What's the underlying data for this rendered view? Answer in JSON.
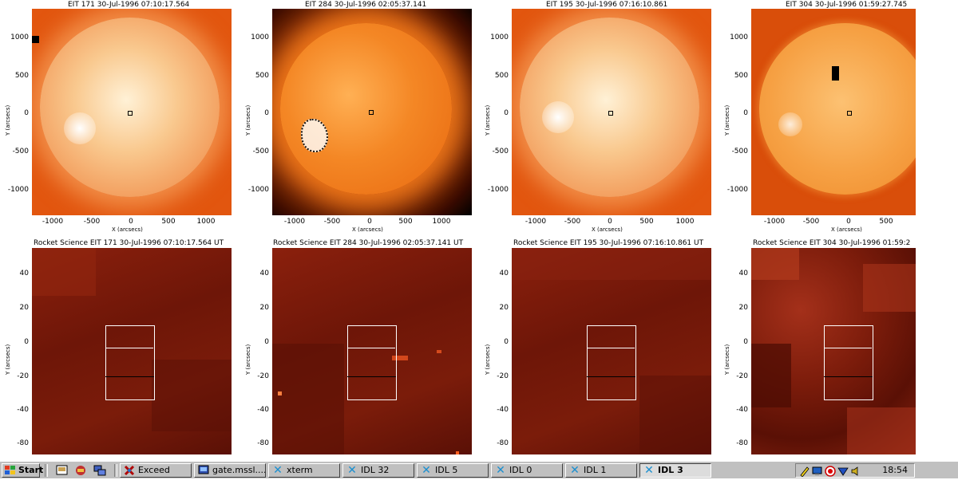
{
  "top_panels": [
    {
      "title": "EIT 171  30-Jul-1996  07:10:17.564",
      "ylabel": "Y (arcsecs)",
      "xlabel": "X (arcsecs)",
      "yticks": [
        "1000",
        "500",
        "0",
        "-500",
        "-1000"
      ],
      "xticks": [
        "-1000",
        "-500",
        "0",
        "500",
        "1000"
      ]
    },
    {
      "title": "EIT 284  30-Jul-1996  02:05:37.141",
      "ylabel": "Y (arcsecs)",
      "xlabel": "X (arcsecs)",
      "yticks": [
        "1000",
        "500",
        "0",
        "-500",
        "-1000"
      ],
      "xticks": [
        "-1000",
        "-500",
        "0",
        "500",
        "1000"
      ]
    },
    {
      "title": "EIT 195  30-Jul-1996  07:16:10.861",
      "ylabel": "Y (arcsecs)",
      "xlabel": "X (arcsecs)",
      "yticks": [
        "1000",
        "500",
        "0",
        "-500",
        "-1000"
      ],
      "xticks": [
        "-1000",
        "-500",
        "0",
        "500",
        "1000"
      ]
    },
    {
      "title": "EIT 304  30-Jul-1996  01:59:27.745",
      "ylabel": "Y (arcsecs)",
      "xlabel": "X (arcsecs)",
      "yticks": [
        "1000",
        "500",
        "0",
        "-500",
        "-1000"
      ],
      "xticks": [
        "-1000",
        "-500",
        "0",
        "500"
      ]
    }
  ],
  "bottom_panels": [
    {
      "title": "Rocket Science EIT 171  30-Jul-1996  07:10:17.564  UT",
      "ylabel": "Y (arcsecs)",
      "yticks": [
        "40",
        "20",
        "0",
        "-20",
        "-40",
        "-60",
        "-80"
      ]
    },
    {
      "title": "Rocket Science EIT 284  30-Jul-1996  02:05:37.141  UT",
      "ylabel": "Y (arcsecs)",
      "yticks": [
        "40",
        "20",
        "0",
        "-20",
        "-40",
        "-60",
        "-80"
      ]
    },
    {
      "title": "Rocket Science EIT 195  30-Jul-1996  07:16:10.861  UT",
      "ylabel": "Y (arcsecs)",
      "yticks": [
        "40",
        "20",
        "0",
        "-20",
        "-40",
        "-60",
        "-80"
      ]
    },
    {
      "title": "Rocket Science EIT 304  30-Jul-1996  01:59:2",
      "ylabel": "Y (arcsecs)",
      "yticks": [
        "40",
        "20",
        "0",
        "-20",
        "-40",
        "-60",
        "-80"
      ]
    }
  ],
  "taskbar": {
    "start_label": "Start",
    "quick_launch": [
      "desktop-icon",
      "app-icon",
      "network-icon"
    ],
    "buttons": [
      {
        "label": "Exceed",
        "icon": "exceed-icon",
        "active": false
      },
      {
        "label": "gate.mssl....",
        "icon": "terminal-icon",
        "active": false
      },
      {
        "label": "xterm",
        "icon": "x-icon",
        "active": false
      },
      {
        "label": "IDL 32",
        "icon": "x-icon",
        "active": false
      },
      {
        "label": "IDL 5",
        "icon": "x-icon",
        "active": false
      },
      {
        "label": "IDL 0",
        "icon": "x-icon",
        "active": false
      },
      {
        "label": "IDL 1",
        "icon": "x-icon",
        "active": false
      },
      {
        "label": "IDL 3",
        "icon": "x-icon",
        "active": true
      }
    ],
    "tray_icons": [
      "pencil-icon",
      "monitor-icon",
      "record-icon",
      "network-status-icon",
      "speaker-icon"
    ],
    "clock": "18:54"
  }
}
